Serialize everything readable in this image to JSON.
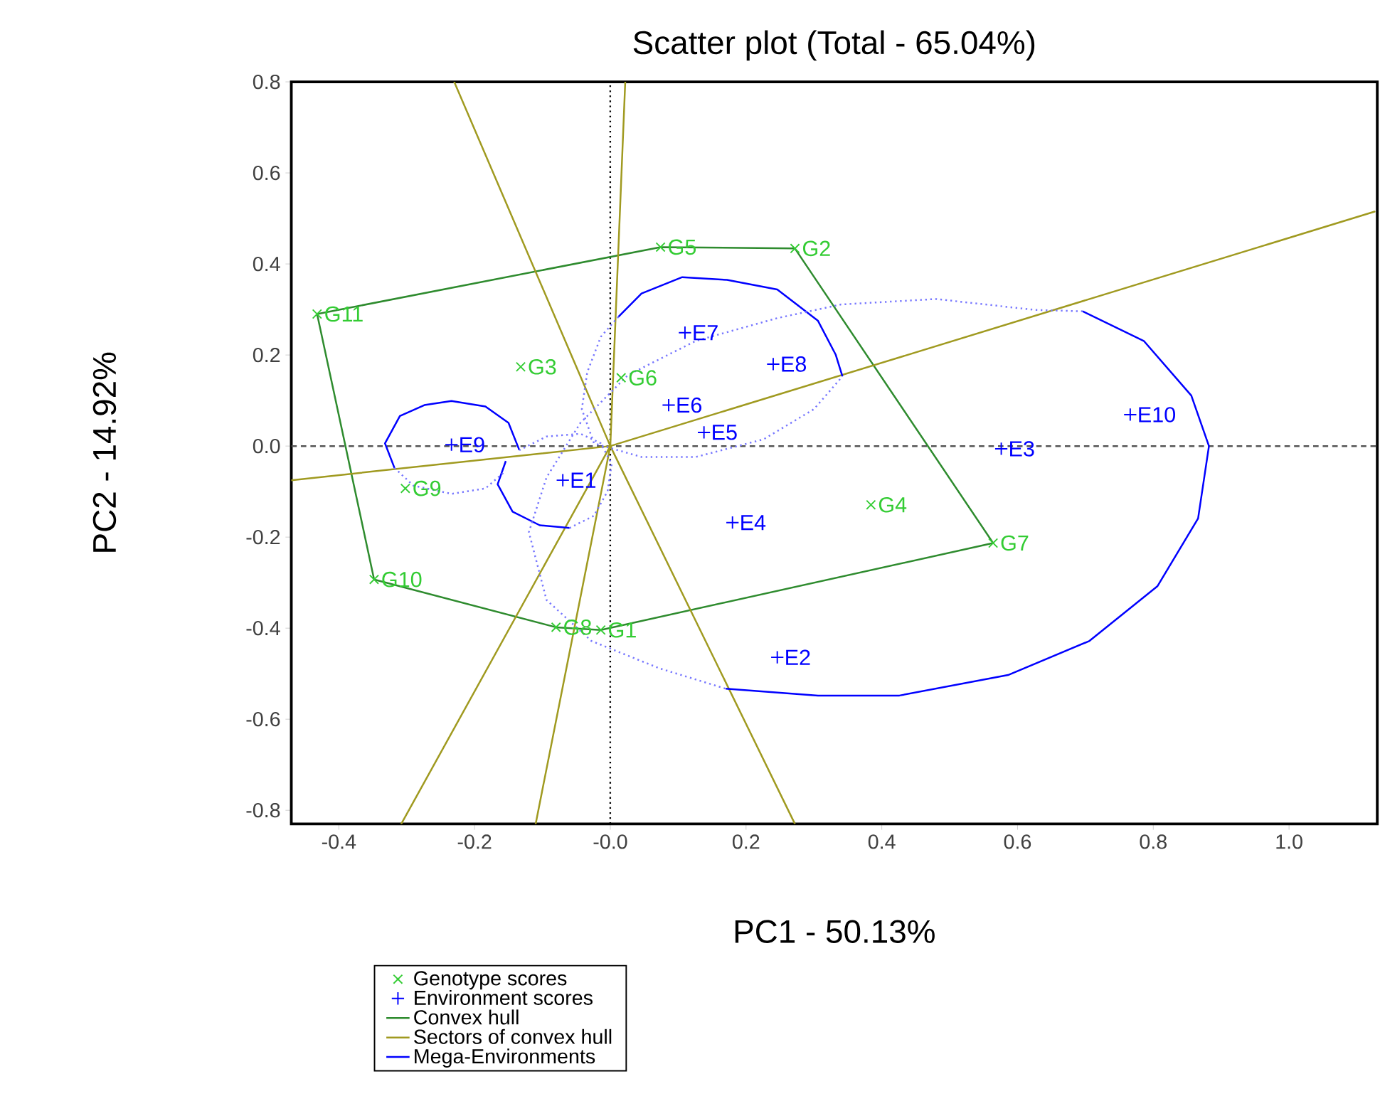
{
  "chart_data": {
    "type": "scatter",
    "title": "Scatter plot (Total - 65.04%)",
    "xlabel": "PC1 - 50.13%",
    "ylabel": "PC2 - 14.92%",
    "xlim": [
      -0.47,
      1.13
    ],
    "ylim": [
      -0.83,
      0.8
    ],
    "xticks": [
      -0.4,
      -0.2,
      {
        "value": 0,
        "label": "-0.0"
      },
      0.2,
      0.4,
      0.6,
      0.8,
      {
        "value": 1.0,
        "label": "1.0"
      }
    ],
    "yticks": [
      -0.8,
      -0.6,
      -0.4,
      -0.2,
      {
        "value": 0,
        "label": "0.0"
      },
      0.2,
      0.4,
      0.6,
      0.8
    ],
    "legend": "bottom",
    "ref_lines": [
      {
        "axis": "x",
        "value": 0,
        "color": "#000000",
        "line_style": "dotted"
      },
      {
        "axis": "y",
        "value": 0,
        "color": "#555555",
        "line_style": "dashed"
      }
    ],
    "series": [
      {
        "name": "Genotype scores",
        "marker": "cross",
        "color": "#33cc33",
        "x": [
          -0.014,
          0.272,
          -0.132,
          0.384,
          0.074,
          0.016,
          0.564,
          -0.08,
          -0.302,
          -0.348,
          -0.432
        ],
        "values": [
          -0.404,
          0.434,
          0.174,
          -0.129,
          0.437,
          0.15,
          -0.213,
          -0.398,
          -0.093,
          -0.293,
          0.29
        ],
        "value_labels": [
          "G1",
          "G2",
          "G3",
          "G4",
          "G5",
          "G6",
          "G7",
          "G8",
          "G9",
          "G10",
          "G11"
        ]
      },
      {
        "name": "Environment scores",
        "marker": "plus",
        "color": "#0000ff",
        "x": [
          -0.07,
          0.246,
          0.576,
          0.18,
          0.138,
          0.086,
          0.11,
          0.24,
          -0.234,
          0.766
        ],
        "values": [
          -0.075,
          -0.464,
          -0.006,
          -0.168,
          0.03,
          0.09,
          0.249,
          0.18,
          0.003,
          0.069
        ],
        "value_labels": [
          "E1",
          "E2",
          "E3",
          "E4",
          "E5",
          "E6",
          "E7",
          "E8",
          "E9",
          "E10"
        ]
      },
      {
        "name": "Convex hull",
        "type": "line",
        "color": "#2e8b2e",
        "x": [
          -0.432,
          0.074,
          0.272,
          0.564,
          -0.014,
          -0.08,
          -0.348
        ],
        "values": [
          0.29,
          0.437,
          0.434,
          -0.213,
          -0.404,
          -0.398,
          -0.293
        ]
      },
      {
        "type": "line",
        "color": "#2e8b2e",
        "x": [
          -0.348,
          -0.432
        ],
        "values": [
          -0.293,
          0.29
        ]
      },
      {
        "name": "Sectors of convex hull",
        "type": "line",
        "color": "#a09a20",
        "x": [
          0,
          -0.23,
          0,
          0.022,
          0,
          1.126,
          0,
          -0.47,
          0,
          -0.308,
          0,
          -0.11,
          0,
          0.272
        ],
        "values": [
          0,
          0.8,
          0,
          0.8,
          0,
          0.515,
          0,
          -0.075,
          0,
          -0.83,
          0,
          -0.83,
          0,
          -0.83
        ]
      },
      {
        "name": "Mega-Environments",
        "type": "line",
        "color": "#0000ff",
        "x": [
          0.696,
          0.786,
          0.856,
          0.882,
          0.866,
          0.806,
          0.706,
          0.586,
          0.426,
          0.306,
          0.17
        ],
        "values": [
          0.296,
          0.231,
          0.111,
          0.0,
          -0.159,
          -0.308,
          -0.428,
          -0.503,
          -0.548,
          -0.548,
          -0.533
        ]
      },
      {
        "type": "line",
        "color": "#0000ff",
        "x": [
          0.012,
          0.046,
          0.106,
          0.172,
          0.246,
          0.306,
          0.332,
          0.342
        ],
        "values": [
          0.284,
          0.335,
          0.371,
          0.365,
          0.344,
          0.275,
          0.201,
          0.153
        ]
      },
      {
        "type": "line",
        "color": "#0000ff",
        "x": [
          -0.318,
          -0.332,
          -0.31,
          -0.274,
          -0.234,
          -0.184,
          -0.15,
          -0.134
        ],
        "values": [
          -0.048,
          0.006,
          0.066,
          0.09,
          0.099,
          0.087,
          0.051,
          -0.009
        ]
      },
      {
        "type": "line",
        "color": "#0000ff",
        "x": [
          -0.154,
          -0.166,
          -0.144,
          -0.104,
          -0.06
        ],
        "values": [
          -0.033,
          -0.084,
          -0.144,
          -0.174,
          -0.18
        ]
      },
      {
        "type": "line",
        "line_style": "dotted",
        "color": "#7777ff",
        "x": [
          0.696,
          0.626,
          0.48,
          0.34,
          0.246,
          0.126,
          0.026,
          -0.044,
          -0.094,
          -0.12,
          -0.094,
          -0.028,
          0.072,
          0.17
        ],
        "values": [
          0.296,
          0.299,
          0.323,
          0.311,
          0.281,
          0.231,
          0.156,
          0.051,
          -0.069,
          -0.189,
          -0.338,
          -0.428,
          -0.488,
          -0.533
        ]
      },
      {
        "type": "line",
        "line_style": "dotted",
        "color": "#7777ff",
        "x": [
          0.012,
          -0.014,
          -0.034,
          -0.042,
          -0.024,
          0.046,
          0.126,
          0.226,
          0.3,
          0.342
        ],
        "values": [
          0.284,
          0.24,
          0.162,
          0.081,
          0.006,
          -0.024,
          -0.024,
          0.015,
          0.081,
          0.153
        ]
      },
      {
        "type": "line",
        "line_style": "dotted",
        "color": "#7777ff",
        "x": [
          -0.318,
          -0.29,
          -0.234,
          -0.184,
          -0.154
        ],
        "values": [
          -0.048,
          -0.087,
          -0.105,
          -0.093,
          -0.054
        ]
      },
      {
        "type": "line",
        "line_style": "dotted",
        "color": "#7777ff",
        "x": [
          -0.06,
          -0.024,
          -0.004,
          0.002,
          -0.014,
          -0.044,
          -0.094,
          -0.134
        ],
        "values": [
          -0.18,
          -0.153,
          -0.099,
          -0.039,
          0.006,
          0.027,
          0.021,
          -0.009
        ]
      }
    ]
  }
}
